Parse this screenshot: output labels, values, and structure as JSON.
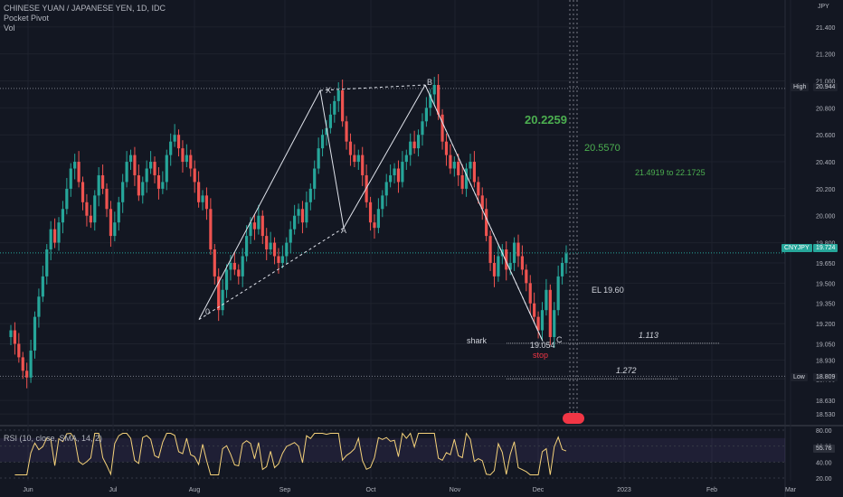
{
  "legend": {
    "symbol": "CHINESE YUAN / JAPANESE YEN, 1D, IDC",
    "indicator1": "Pocket Pivot",
    "indicator2": "Vol"
  },
  "rsi_label": "RSI (10, close, SMA, 14, 2)",
  "axis_currency": "JPY",
  "annotations": {
    "target1": "20.2259",
    "target2": "20.5570",
    "target_range": "21.4919 to 22.1725",
    "el": "EL 19.60",
    "shark": "shark",
    "stop_value": "19.054",
    "stop": "stop",
    "fib1": "1.113",
    "fib2": "1.272",
    "pt_x": "X",
    "pt_a": "A",
    "pt_b": "B",
    "pt_c": "C",
    "pt_0": "0"
  },
  "tags": {
    "high_label": "High",
    "high_value": "20.944",
    "low_label": "Low",
    "low_value": "18.809",
    "pair_label": "CNYJPY",
    "pair_value": "19.724",
    "rsi_value": "55.76"
  },
  "colors": {
    "background": "#131722",
    "up": "#26a69a",
    "down": "#ef5350",
    "grid": "#1e222d",
    "target": "#4caf50",
    "rsi_line": "#f5d27a",
    "rsi_band": "#7e57c2"
  },
  "chart_data": {
    "type": "candlestick",
    "price_axis": {
      "ylim": [
        18.45,
        21.6
      ],
      "ticks": [
        "21.400",
        "21.200",
        "21.000",
        "20.800",
        "20.600",
        "20.400",
        "20.200",
        "20.000",
        "19.800",
        "19.650",
        "19.500",
        "19.350",
        "19.200",
        "19.050",
        "18.930",
        "18.790",
        "18.630",
        "18.530"
      ]
    },
    "rsi_axis": {
      "ylim": [
        20,
        80
      ],
      "ticks": [
        "80.00",
        "60.00",
        "40.00",
        "20.00"
      ]
    },
    "time_axis": {
      "ticks": [
        "Jun",
        "Jul",
        "Aug",
        "Sep",
        "Oct",
        "Nov",
        "Dec",
        "2023",
        "Feb",
        "Mar"
      ]
    },
    "pattern_points": [
      {
        "label": "0",
        "value": 19.23
      },
      {
        "label": "X",
        "value": 20.93
      },
      {
        "label": "A",
        "value": 19.91
      },
      {
        "label": "B",
        "value": 20.97
      },
      {
        "label": "C",
        "value": 19.054
      }
    ],
    "levels": {
      "high": 20.944,
      "low": 18.809,
      "last": 19.724,
      "fib_1_113": 19.054,
      "fib_1_272": 18.79
    },
    "rsi_last": 55.76,
    "closes": [
      19.15,
      19.05,
      18.95,
      18.85,
      18.8,
      19.0,
      19.25,
      19.4,
      19.55,
      19.75,
      19.9,
      19.8,
      19.95,
      20.05,
      20.2,
      20.35,
      20.4,
      20.25,
      20.1,
      20.0,
      19.95,
      20.15,
      20.3,
      20.2,
      20.05,
      19.85,
      19.95,
      20.1,
      20.25,
      20.4,
      20.45,
      20.3,
      20.15,
      20.25,
      20.35,
      20.4,
      20.3,
      20.2,
      20.25,
      20.45,
      20.55,
      20.6,
      20.5,
      20.4,
      20.45,
      20.35,
      20.25,
      20.1,
      20.15,
      20.05,
      19.75,
      19.55,
      19.3,
      19.45,
      19.6,
      19.65,
      19.6,
      19.55,
      19.7,
      19.85,
      19.95,
      19.9,
      20.0,
      19.85,
      19.75,
      19.8,
      19.7,
      19.65,
      19.7,
      19.8,
      19.9,
      20.0,
      20.05,
      19.95,
      20.1,
      20.2,
      20.35,
      20.5,
      20.6,
      20.65,
      20.75,
      20.85,
      20.93,
      20.7,
      20.55,
      20.45,
      20.4,
      20.45,
      20.3,
      20.1,
      19.95,
      19.91,
      20.05,
      20.15,
      20.25,
      20.3,
      20.35,
      20.25,
      20.4,
      20.45,
      20.55,
      20.5,
      20.6,
      20.7,
      20.8,
      20.9,
      20.97,
      20.75,
      20.55,
      20.45,
      20.35,
      20.4,
      20.3,
      20.2,
      20.35,
      20.4,
      20.25,
      20.15,
      20.05,
      19.85,
      19.65,
      19.55,
      19.7,
      19.75,
      19.6,
      19.65,
      19.8,
      19.7,
      19.6,
      19.5,
      19.35,
      19.25,
      19.15,
      19.3,
      19.45,
      19.1,
      19.3,
      19.55,
      19.65,
      19.72
    ]
  }
}
